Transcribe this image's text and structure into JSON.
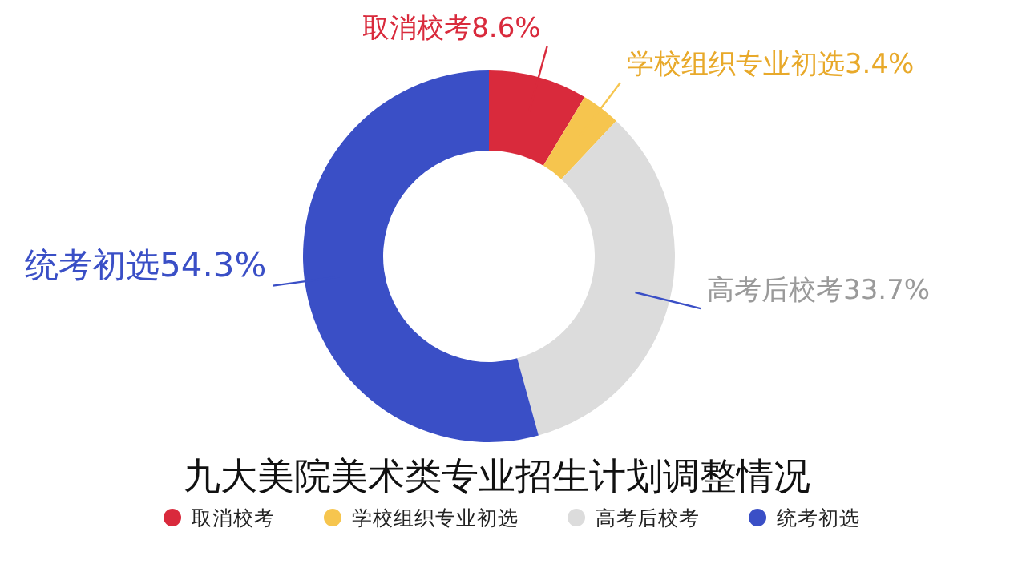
{
  "chart_data": {
    "type": "donut",
    "title": "九大美院美术类专业招生计划调整情况",
    "categories": [
      "取消校考",
      "学校组织专业初选",
      "高考后校考",
      "统考初选"
    ],
    "values": [
      8.6,
      3.4,
      33.7,
      54.3
    ],
    "value_labels": [
      "8.6%",
      "3.4%",
      "33.7%",
      "54.3%"
    ],
    "colors": [
      "#d92a3c",
      "#f6c54e",
      "#dcdcdc",
      "#3a4fc6"
    ],
    "legend": "bottom"
  }
}
